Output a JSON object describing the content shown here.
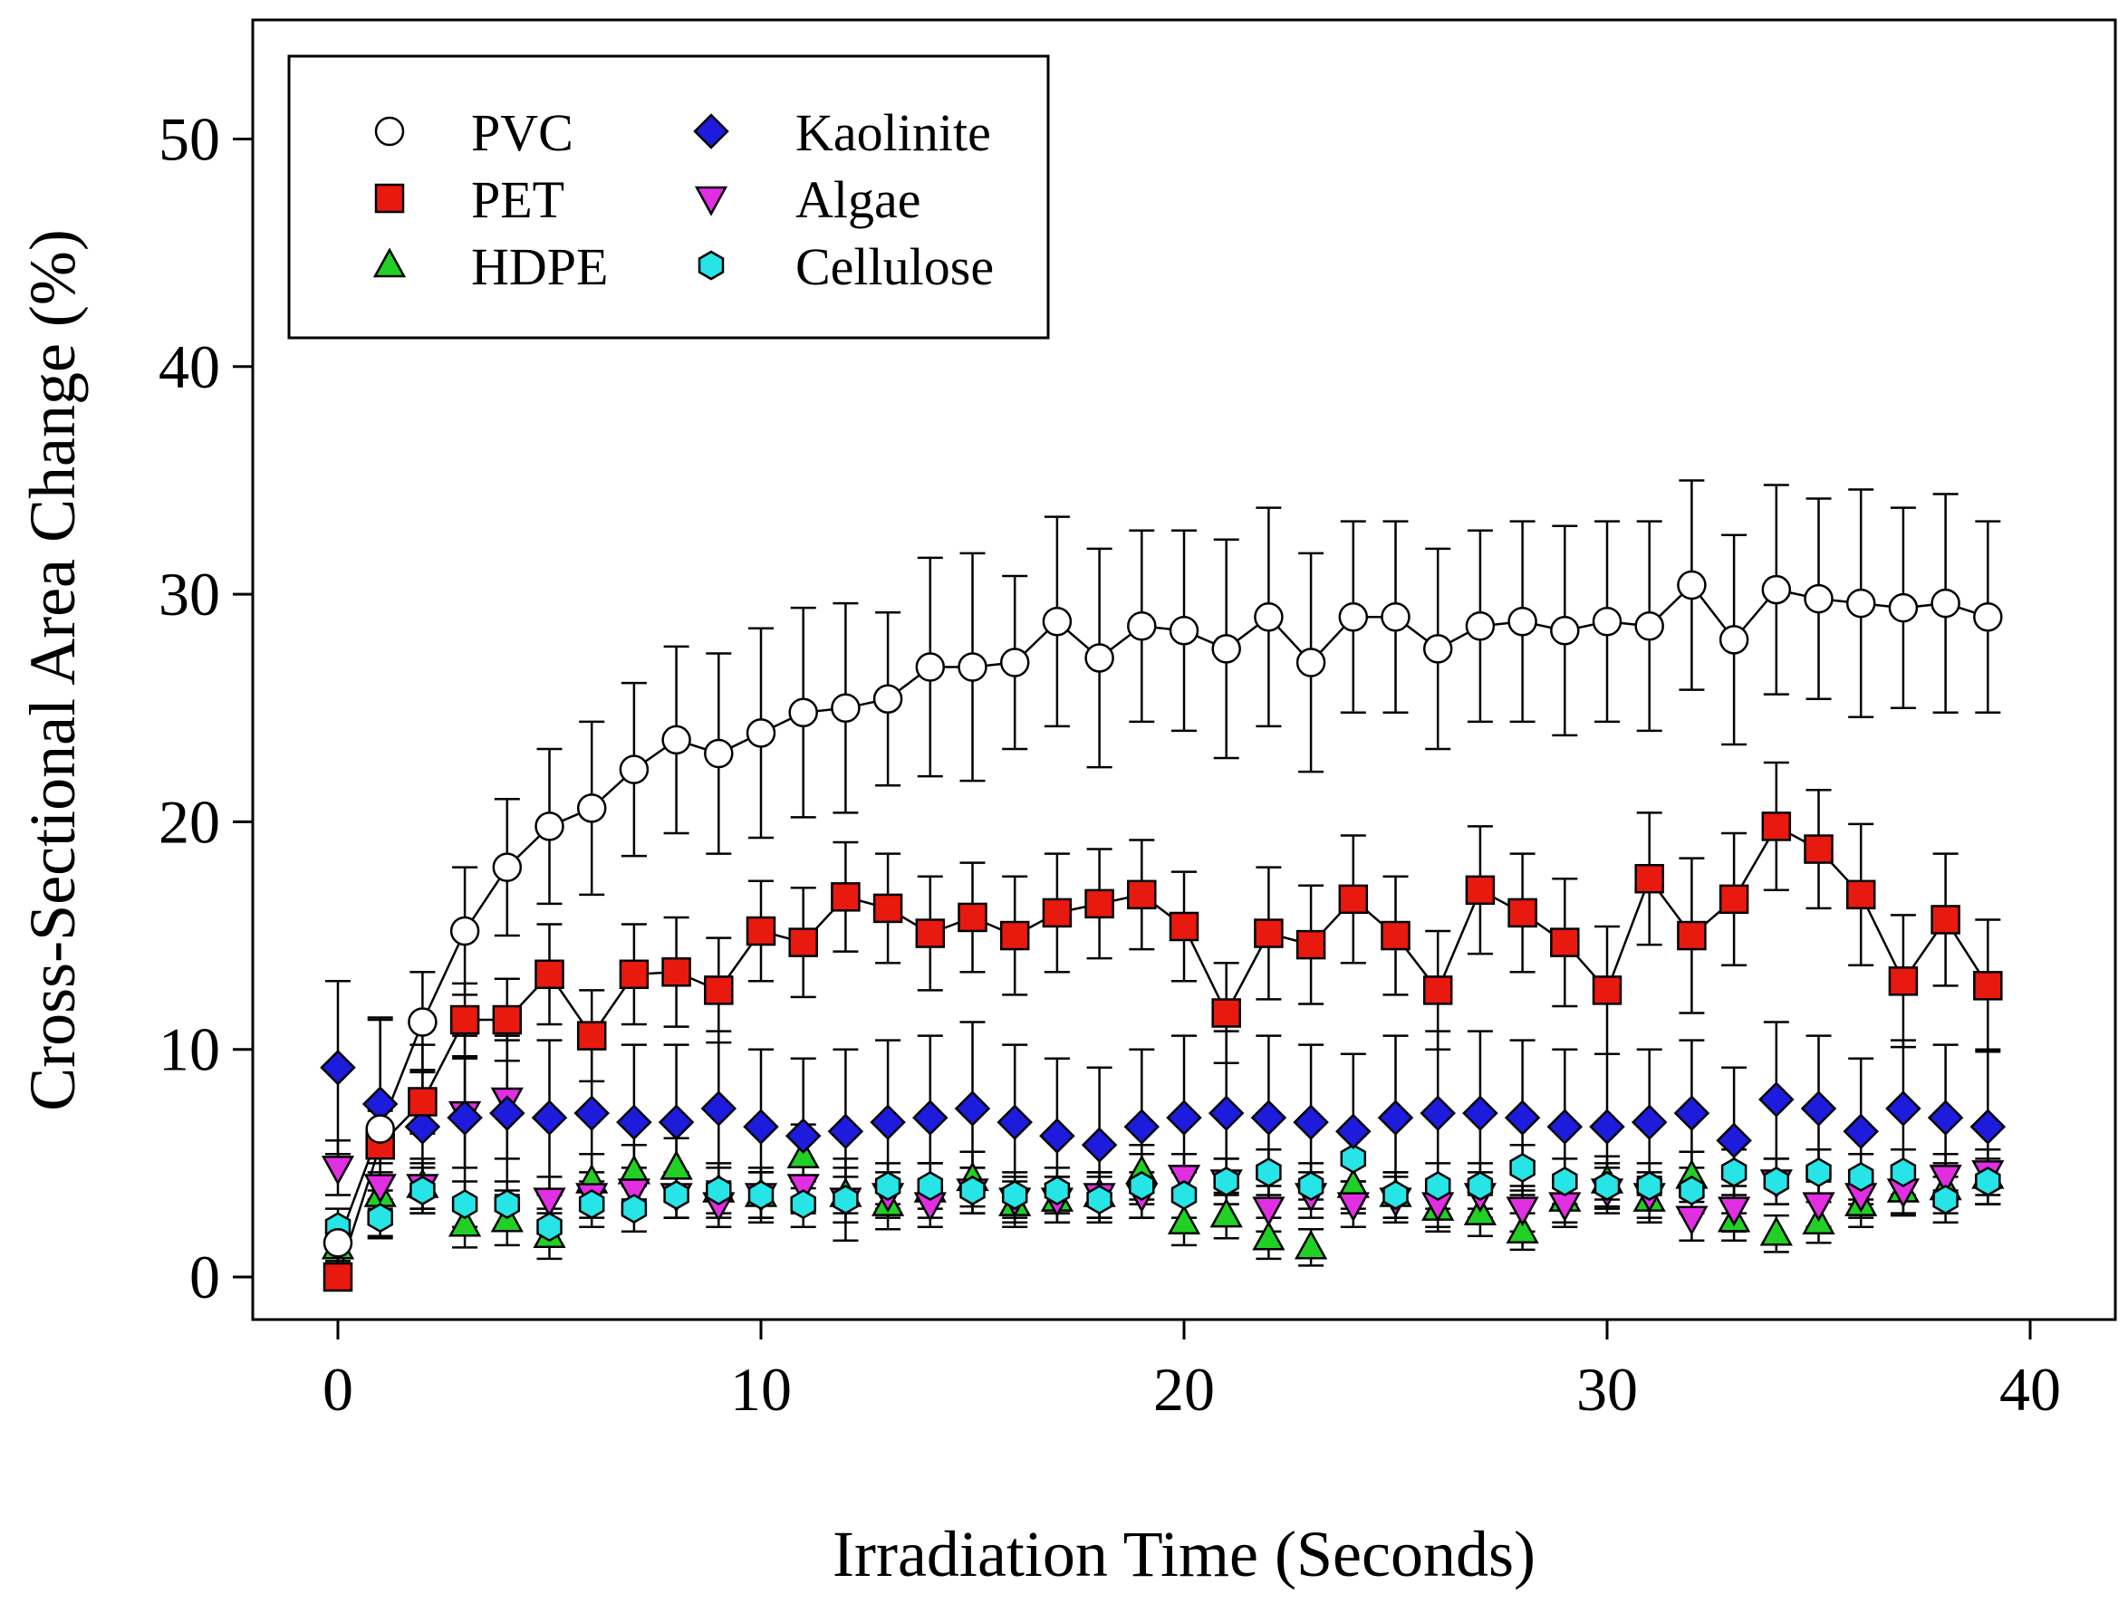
{
  "chart_data": {
    "type": "scatter",
    "title": "",
    "xlabel": "Irradiation Time (Seconds)",
    "ylabel": "Cross-Sectional Area Change (%)",
    "xlim": [
      -2,
      42
    ],
    "ylim": [
      -2,
      55
    ],
    "xticks": [
      0,
      10,
      20,
      30,
      40
    ],
    "yticks": [
      0,
      10,
      20,
      30,
      40,
      50
    ],
    "grid": false,
    "legend_position": "top-left",
    "x": [
      0,
      1,
      2,
      3,
      4,
      5,
      6,
      7,
      8,
      9,
      10,
      11,
      12,
      13,
      14,
      15,
      16,
      17,
      18,
      19,
      20,
      21,
      22,
      23,
      24,
      25,
      26,
      27,
      28,
      29,
      30,
      31,
      32,
      33,
      34,
      35,
      36,
      37,
      38,
      39
    ],
    "series": [
      {
        "name": "PVC",
        "marker": "circle",
        "fill": "#ffffff",
        "connected": true,
        "values": [
          1.5,
          6.5,
          11.2,
          15.2,
          18.0,
          19.8,
          20.6,
          22.3,
          23.6,
          23.0,
          23.9,
          24.8,
          25.0,
          25.4,
          26.8,
          26.8,
          27.0,
          28.8,
          27.2,
          28.6,
          28.4,
          27.6,
          29.0,
          27.0,
          29.0,
          29.0,
          27.6,
          28.6,
          28.8,
          28.4,
          28.8,
          28.6,
          30.4,
          28.0,
          30.2,
          29.8,
          29.6,
          29.4,
          29.6,
          29.0
        ],
        "errors": [
          1.0,
          4.8,
          2.2,
          2.8,
          3.0,
          3.4,
          3.8,
          3.8,
          4.1,
          4.4,
          4.6,
          4.6,
          4.6,
          3.8,
          4.8,
          5.0,
          3.8,
          4.6,
          4.8,
          4.2,
          4.4,
          4.8,
          4.8,
          4.8,
          4.2,
          4.2,
          4.4,
          4.2,
          4.4,
          4.6,
          4.4,
          4.6,
          4.6,
          4.6,
          4.6,
          4.4,
          5.0,
          4.4,
          4.8,
          4.2
        ]
      },
      {
        "name": "PET",
        "marker": "square",
        "fill": "#e8190e",
        "connected": true,
        "values": [
          0.0,
          5.8,
          7.7,
          11.3,
          11.3,
          13.3,
          10.6,
          13.3,
          13.4,
          12.6,
          15.2,
          14.7,
          16.7,
          16.2,
          15.1,
          15.8,
          15.0,
          16.0,
          16.4,
          16.8,
          15.4,
          11.6,
          15.1,
          14.6,
          16.6,
          15.0,
          12.6,
          17.0,
          16.0,
          14.7,
          12.6,
          17.5,
          15.0,
          16.6,
          19.8,
          18.8,
          16.8,
          13.0,
          15.7,
          12.8
        ],
        "errors": [
          0.5,
          1.5,
          1.4,
          1.6,
          1.8,
          2.2,
          2.0,
          2.2,
          2.4,
          2.3,
          2.2,
          2.4,
          2.4,
          2.4,
          2.5,
          2.4,
          2.6,
          2.6,
          2.4,
          2.4,
          2.4,
          2.2,
          2.9,
          2.6,
          2.8,
          2.6,
          2.6,
          2.8,
          2.6,
          2.8,
          2.8,
          2.9,
          3.4,
          2.9,
          2.8,
          2.6,
          3.1,
          2.9,
          2.9,
          2.9
        ]
      },
      {
        "name": "HDPE",
        "marker": "triangle-up",
        "fill": "#22d025",
        "connected": false,
        "values": [
          1.3,
          3.6,
          4.0,
          2.3,
          2.5,
          1.8,
          4.2,
          4.6,
          4.8,
          3.8,
          3.6,
          5.3,
          3.6,
          3.2,
          3.8,
          4.3,
          3.2,
          3.4,
          3.6,
          4.6,
          2.4,
          2.7,
          1.7,
          1.3,
          4.0,
          3.6,
          3.0,
          2.8,
          2.0,
          3.4,
          4.2,
          3.4,
          4.4,
          2.5,
          1.9,
          2.4,
          3.2,
          3.8,
          3.9,
          4.4
        ],
        "errors": [
          0.6,
          1.0,
          1.2,
          1.0,
          1.1,
          1.0,
          1.2,
          1.2,
          1.3,
          1.2,
          1.2,
          1.4,
          1.2,
          1.1,
          1.2,
          1.2,
          1.0,
          1.0,
          1.0,
          1.2,
          1.0,
          1.0,
          0.9,
          0.8,
          1.2,
          1.0,
          1.0,
          1.0,
          0.8,
          1.0,
          1.1,
          1.0,
          1.1,
          0.9,
          0.8,
          0.9,
          1.0,
          1.1,
          1.1,
          1.2
        ]
      },
      {
        "name": "Kaolinite",
        "marker": "diamond",
        "fill": "#1d1cdc",
        "connected": false,
        "values": [
          9.2,
          7.6,
          6.6,
          7.0,
          7.2,
          7.0,
          7.2,
          6.8,
          6.8,
          7.4,
          6.6,
          6.2,
          6.4,
          6.8,
          7.0,
          7.4,
          6.8,
          6.2,
          5.8,
          6.6,
          7.0,
          7.2,
          7.0,
          6.8,
          6.4,
          7.0,
          7.2,
          7.2,
          7.0,
          6.6,
          6.6,
          6.8,
          7.2,
          6.0,
          7.8,
          7.4,
          6.4,
          7.4,
          7.0,
          6.6
        ],
        "errors": [
          3.8,
          3.8,
          3.6,
          3.6,
          3.4,
          3.4,
          3.4,
          3.4,
          3.4,
          3.4,
          3.4,
          3.4,
          3.6,
          3.6,
          3.6,
          3.8,
          3.4,
          3.4,
          3.4,
          3.4,
          3.6,
          3.6,
          3.6,
          3.4,
          3.4,
          3.6,
          3.6,
          3.6,
          3.4,
          3.4,
          3.2,
          3.2,
          3.2,
          3.2,
          3.4,
          3.2,
          3.2,
          3.0,
          3.2,
          3.4
        ]
      },
      {
        "name": "Algae",
        "marker": "triangle-down",
        "fill": "#e22ee2",
        "connected": false,
        "values": [
          4.8,
          4.0,
          4.0,
          7.2,
          7.8,
          3.4,
          3.6,
          3.8,
          3.6,
          3.2,
          3.6,
          4.0,
          3.4,
          3.6,
          3.2,
          3.8,
          3.4,
          3.4,
          3.6,
          3.6,
          4.4,
          4.2,
          3.0,
          3.6,
          3.2,
          3.4,
          3.2,
          3.6,
          3.0,
          3.2,
          3.8,
          3.6,
          2.6,
          3.0,
          4.2,
          3.2,
          3.6,
          3.8,
          4.4,
          4.6
        ],
        "errors": [
          1.2,
          1.0,
          1.0,
          2.4,
          2.6,
          1.0,
          1.0,
          1.0,
          1.0,
          1.0,
          1.0,
          1.0,
          1.0,
          1.0,
          1.0,
          1.0,
          1.0,
          1.0,
          1.0,
          1.0,
          1.0,
          1.0,
          1.0,
          1.0,
          1.0,
          1.0,
          1.0,
          1.0,
          1.0,
          1.0,
          1.0,
          1.0,
          1.0,
          1.0,
          1.0,
          1.0,
          1.0,
          1.0,
          1.0,
          1.0
        ]
      },
      {
        "name": "Cellulose",
        "marker": "hexagon",
        "fill": "#27e4e6",
        "connected": false,
        "values": [
          2.2,
          2.6,
          3.8,
          3.2,
          3.2,
          2.2,
          3.2,
          3.0,
          3.6,
          3.8,
          3.6,
          3.2,
          3.4,
          4.0,
          4.0,
          3.8,
          3.6,
          3.8,
          3.4,
          4.0,
          3.6,
          4.2,
          4.6,
          4.0,
          5.2,
          3.6,
          4.0,
          4.0,
          4.8,
          4.2,
          4.0,
          4.0,
          3.8,
          4.6,
          4.2,
          4.6,
          4.4,
          4.6,
          3.4,
          4.2
        ],
        "errors": [
          0.8,
          0.8,
          1.0,
          1.0,
          1.0,
          0.8,
          1.0,
          1.0,
          1.0,
          1.0,
          1.0,
          1.0,
          1.8,
          1.0,
          1.0,
          1.0,
          1.0,
          1.0,
          1.0,
          1.4,
          1.0,
          1.0,
          1.0,
          1.0,
          1.0,
          1.0,
          1.0,
          1.0,
          1.0,
          1.0,
          1.0,
          1.0,
          1.0,
          1.0,
          1.0,
          1.0,
          1.0,
          1.0,
          1.0,
          1.0
        ]
      }
    ]
  }
}
